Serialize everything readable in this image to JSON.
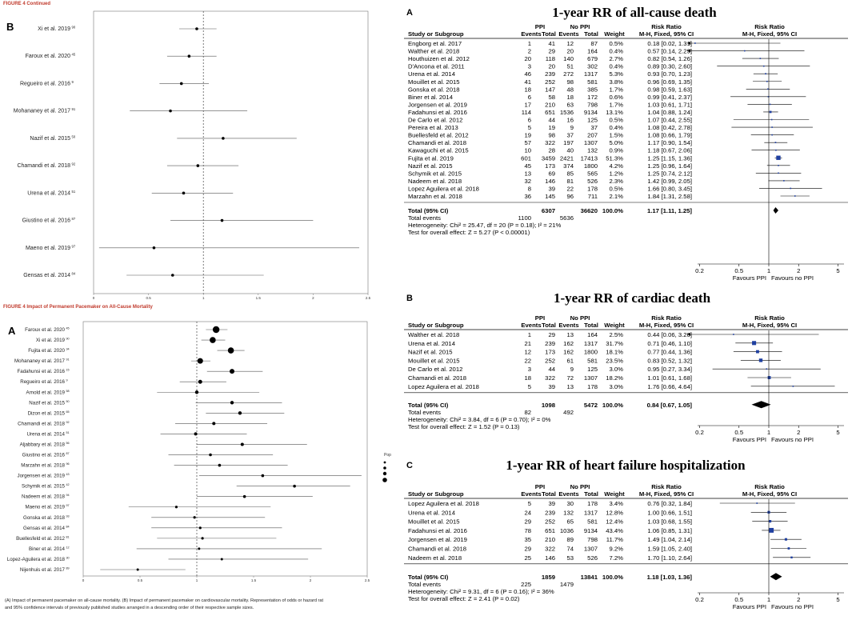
{
  "left_figure": {
    "header_continued": "FIGURE 4  Continued",
    "header_impact": "FIGURE 4  Impact of Permanent Pacemaker on All-Cause Mortality",
    "panel_b_letter": "B",
    "panel_a_letter": "A",
    "legend_label": "Pop",
    "caption_line1": "(A) Impact of permanent pacemaker on all-cause mortality. (B) Impact of permanent pacemaker on cardiovascular mortality. Representation of odds or hazard rat",
    "caption_line2": "and 95% confidence intervals of previously published studies arranged in a descending order of their respective sample sizes."
  },
  "chart_data": [
    {
      "id": "left-b",
      "type": "scatter",
      "title": "",
      "xlim": [
        0,
        2.5
      ],
      "ticks": [
        "0",
        "0.5",
        "1",
        "1.5",
        "2",
        "2.5"
      ],
      "ref_line": 1,
      "rows": [
        {
          "study": "Xi et al. 2019",
          "sup": "90",
          "est": 0.94,
          "lo": 0.78,
          "hi": 1.12
        },
        {
          "study": "Faroux et al. 2020",
          "sup": "45",
          "est": 0.87,
          "lo": 0.67,
          "hi": 1.12
        },
        {
          "study": "Regueiro et al. 2016",
          "sup": "9",
          "est": 0.8,
          "lo": 0.6,
          "hi": 1.05
        },
        {
          "study": "Mohananey et al. 2017",
          "sup": "91",
          "est": 0.7,
          "lo": 0.33,
          "hi": 1.4
        },
        {
          "study": "Nazif et al. 2015",
          "sup": "50",
          "est": 1.18,
          "lo": 0.76,
          "hi": 1.85
        },
        {
          "study": "Chamandi et al. 2018",
          "sup": "92",
          "est": 0.95,
          "lo": 0.67,
          "hi": 1.32
        },
        {
          "study": "Urena et al. 2014",
          "sup": "51",
          "est": 0.82,
          "lo": 0.53,
          "hi": 1.27
        },
        {
          "study": "Giustino et al. 2016",
          "sup": "87",
          "est": 1.17,
          "lo": 0.7,
          "hi": 2.0
        },
        {
          "study": "Maeno et al. 2019",
          "sup": "97",
          "est": 0.55,
          "lo": 0.05,
          "hi": 2.42
        },
        {
          "study": "Gensas et al. 2014",
          "sup": "84",
          "est": 0.72,
          "lo": 0.3,
          "hi": 1.55
        }
      ]
    },
    {
      "id": "left-a",
      "type": "scatter",
      "title": "",
      "xlim": [
        0,
        2.5
      ],
      "ticks": [
        "0",
        "0.5",
        "1",
        "1.5",
        "2",
        "2.5"
      ],
      "ref_line": 1,
      "rows": [
        {
          "study": "Faroux et al. 2020",
          "sup": "45",
          "est": 1.17,
          "lo": 1.08,
          "hi": 1.27,
          "size": 4.2
        },
        {
          "study": "Xi et al. 2019",
          "sup": "90",
          "est": 1.14,
          "lo": 1.04,
          "hi": 1.25,
          "size": 3.8
        },
        {
          "study": "Fujita et al. 2020",
          "sup": "34",
          "est": 1.3,
          "lo": 1.18,
          "hi": 1.42,
          "size": 3.8
        },
        {
          "study": "Mohananey et al. 2017",
          "sup": "91",
          "est": 1.03,
          "lo": 0.95,
          "hi": 1.12,
          "size": 3.5
        },
        {
          "study": "Fadahunsi et al. 2016",
          "sup": "15",
          "est": 1.31,
          "lo": 1.09,
          "hi": 1.58,
          "size": 3.0
        },
        {
          "study": "Regueiro et al. 2016",
          "sup": "9",
          "est": 1.03,
          "lo": 0.85,
          "hi": 1.26,
          "size": 2.5
        },
        {
          "study": "Arnold et al. 2019",
          "sup": "58",
          "est": 1.0,
          "lo": 0.65,
          "hi": 1.55,
          "size": 2.2
        },
        {
          "study": "Nazif et al. 2015",
          "sup": "50",
          "est": 1.31,
          "lo": 0.99,
          "hi": 1.75,
          "size": 2.2
        },
        {
          "study": "Dizon et al. 2015",
          "sup": "65",
          "est": 1.38,
          "lo": 1.08,
          "hi": 1.77,
          "size": 2.2
        },
        {
          "study": "Chamandi et al. 2018",
          "sup": "92",
          "est": 1.15,
          "lo": 0.81,
          "hi": 1.62,
          "size": 2.0
        },
        {
          "study": "Urena et al. 2014",
          "sup": "51",
          "est": 0.99,
          "lo": 0.68,
          "hi": 1.44,
          "size": 2.0
        },
        {
          "study": "Aljabbary et al. 2018",
          "sup": "56",
          "est": 1.4,
          "lo": 1.0,
          "hi": 1.97,
          "size": 2.0
        },
        {
          "study": "Giustino et al. 2016",
          "sup": "87",
          "est": 1.12,
          "lo": 0.75,
          "hi": 1.67,
          "size": 1.8
        },
        {
          "study": "Marzahn et al. 2018",
          "sup": "96",
          "est": 1.2,
          "lo": 0.8,
          "hi": 1.8,
          "size": 1.8
        },
        {
          "study": "Jorgensen et al. 2019",
          "sup": "43",
          "est": 1.58,
          "lo": 1.02,
          "hi": 2.45,
          "size": 1.8
        },
        {
          "study": "Schymik et al. 2015",
          "sup": "42",
          "est": 1.86,
          "lo": 1.35,
          "hi": 2.35,
          "size": 1.8
        },
        {
          "study": "Nadeem et al. 2018",
          "sup": "94",
          "est": 1.42,
          "lo": 1.0,
          "hi": 2.02,
          "size": 1.8
        },
        {
          "study": "Maeno et al. 2019",
          "sup": "97",
          "est": 0.82,
          "lo": 0.4,
          "hi": 1.65,
          "size": 1.6
        },
        {
          "study": "Gonska et al. 2018",
          "sup": "93",
          "est": 0.98,
          "lo": 0.6,
          "hi": 1.6,
          "size": 1.6
        },
        {
          "study": "Gensas et al. 2014",
          "sup": "84",
          "est": 1.03,
          "lo": 0.6,
          "hi": 1.75,
          "size": 1.6
        },
        {
          "study": "Buellesfeld et al. 2012",
          "sup": "81",
          "est": 1.05,
          "lo": 0.65,
          "hi": 1.7,
          "size": 1.6
        },
        {
          "study": "Biner et al. 2014",
          "sup": "12",
          "est": 1.02,
          "lo": 0.47,
          "hi": 2.1,
          "size": 1.5
        },
        {
          "study": "Lopez-Aguilera et al. 2018",
          "sup": "30",
          "est": 1.22,
          "lo": 0.75,
          "hi": 1.98,
          "size": 1.5
        },
        {
          "study": "Nijenhuis et al. 2017",
          "sup": "89",
          "est": 0.48,
          "lo": 0.15,
          "hi": 0.9,
          "size": 1.5
        }
      ]
    },
    {
      "id": "right-a",
      "type": "table",
      "panel": "A",
      "title": "1-year RR of all-cause death",
      "col_groups": [
        "PPI",
        "No PPI",
        "Risk Ratio",
        "Risk Ratio"
      ],
      "cols": [
        "Study or Subgroup",
        "Events",
        "Total",
        "Events",
        "Total",
        "Weight",
        "M-H, Fixed, 95% CI",
        "M-H, Fixed, 95% CI"
      ],
      "rows": [
        {
          "study": "Engborg et al. 2017",
          "e1": "1",
          "t1": "41",
          "e2": "12",
          "t2": "87",
          "w": "0.5%",
          "ci": "0.18 [0.02, 1.31]",
          "est": 0.18,
          "lo": 0.02,
          "hi": 1.31
        },
        {
          "study": "Walther et al. 2018",
          "e1": "2",
          "t1": "29",
          "e2": "20",
          "t2": "164",
          "w": "0.4%",
          "ci": "0.57 [0.14, 2.29]",
          "est": 0.57,
          "lo": 0.14,
          "hi": 2.29
        },
        {
          "study": "Houthuizen et al. 2012",
          "e1": "20",
          "t1": "118",
          "e2": "140",
          "t2": "679",
          "w": "2.7%",
          "ci": "0.82 [0.54, 1.26]",
          "est": 0.82,
          "lo": 0.54,
          "hi": 1.26
        },
        {
          "study": "D'Ancona et al. 2011",
          "e1": "3",
          "t1": "20",
          "e2": "51",
          "t2": "302",
          "w": "0.4%",
          "ci": "0.89 [0.30, 2.60]",
          "est": 0.89,
          "lo": 0.3,
          "hi": 2.6
        },
        {
          "study": "Urena et al. 2014",
          "e1": "46",
          "t1": "239",
          "e2": "272",
          "t2": "1317",
          "w": "5.3%",
          "ci": "0.93 [0.70, 1.23]",
          "est": 0.93,
          "lo": 0.7,
          "hi": 1.23
        },
        {
          "study": "Mouillet et al. 2015",
          "e1": "41",
          "t1": "252",
          "e2": "98",
          "t2": "581",
          "w": "3.8%",
          "ci": "0.96 [0.69, 1.35]",
          "est": 0.96,
          "lo": 0.69,
          "hi": 1.35
        },
        {
          "study": "Gonska et al. 2018",
          "e1": "18",
          "t1": "147",
          "e2": "48",
          "t2": "385",
          "w": "1.7%",
          "ci": "0.98 [0.59, 1.63]",
          "est": 0.98,
          "lo": 0.59,
          "hi": 1.63
        },
        {
          "study": "Biner et al. 2014",
          "e1": "6",
          "t1": "58",
          "e2": "18",
          "t2": "172",
          "w": "0.6%",
          "ci": "0.99 [0.41, 2.37]",
          "est": 0.99,
          "lo": 0.41,
          "hi": 2.37
        },
        {
          "study": "Jorgensen et al. 2019",
          "e1": "17",
          "t1": "210",
          "e2": "63",
          "t2": "798",
          "w": "1.7%",
          "ci": "1.03 [0.61, 1.71]",
          "est": 1.03,
          "lo": 0.61,
          "hi": 1.71
        },
        {
          "study": "Fadahunsi et al. 2016",
          "e1": "114",
          "t1": "651",
          "e2": "1536",
          "t2": "9134",
          "w": "13.1%",
          "ci": "1.04 [0.88, 1.24]",
          "est": 1.04,
          "lo": 0.88,
          "hi": 1.24
        },
        {
          "study": "De Carlo et al. 2012",
          "e1": "6",
          "t1": "44",
          "e2": "16",
          "t2": "125",
          "w": "0.5%",
          "ci": "1.07 [0.44, 2.55]",
          "est": 1.07,
          "lo": 0.44,
          "hi": 2.55
        },
        {
          "study": "Pereira et al. 2013",
          "e1": "5",
          "t1": "19",
          "e2": "9",
          "t2": "37",
          "w": "0.4%",
          "ci": "1.08 [0.42, 2.78]",
          "est": 1.08,
          "lo": 0.42,
          "hi": 2.78
        },
        {
          "study": "Buellesfeld et al. 2012",
          "e1": "19",
          "t1": "98",
          "e2": "37",
          "t2": "207",
          "w": "1.5%",
          "ci": "1.08 [0.66, 1.79]",
          "est": 1.08,
          "lo": 0.66,
          "hi": 1.79
        },
        {
          "study": "Chamandi et al. 2018",
          "e1": "57",
          "t1": "322",
          "e2": "197",
          "t2": "1307",
          "w": "5.0%",
          "ci": "1.17 [0.90, 1.54]",
          "est": 1.17,
          "lo": 0.9,
          "hi": 1.54
        },
        {
          "study": "Kawaguchi et al. 2015",
          "e1": "10",
          "t1": "28",
          "e2": "40",
          "t2": "132",
          "w": "0.9%",
          "ci": "1.18 [0.67, 2.06]",
          "est": 1.18,
          "lo": 0.67,
          "hi": 2.06
        },
        {
          "study": "Fujita et al. 2019",
          "e1": "601",
          "t1": "3459",
          "e2": "2421",
          "t2": "17413",
          "w": "51.3%",
          "ci": "1.25 [1.15, 1.36]",
          "est": 1.25,
          "lo": 1.15,
          "hi": 1.36
        },
        {
          "study": "Nazif et al. 2015",
          "e1": "45",
          "t1": "173",
          "e2": "374",
          "t2": "1800",
          "w": "4.2%",
          "ci": "1.25 [0.96, 1.64]",
          "est": 1.25,
          "lo": 0.96,
          "hi": 1.64
        },
        {
          "study": "Schymik et al. 2015",
          "e1": "13",
          "t1": "69",
          "e2": "85",
          "t2": "565",
          "w": "1.2%",
          "ci": "1.25 [0.74, 2.12]",
          "est": 1.25,
          "lo": 0.74,
          "hi": 2.12
        },
        {
          "study": "Nadeem et al. 2018",
          "e1": "32",
          "t1": "146",
          "e2": "81",
          "t2": "526",
          "w": "2.3%",
          "ci": "1.42 [0.99, 2.05]",
          "est": 1.42,
          "lo": 0.99,
          "hi": 2.05
        },
        {
          "study": "Lopez Aguilera et al. 2018",
          "e1": "8",
          "t1": "39",
          "e2": "22",
          "t2": "178",
          "w": "0.5%",
          "ci": "1.66 [0.80, 3.45]",
          "est": 1.66,
          "lo": 0.8,
          "hi": 3.45
        },
        {
          "study": "Marzahn et al. 2018",
          "e1": "36",
          "t1": "145",
          "e2": "96",
          "t2": "711",
          "w": "2.1%",
          "ci": "1.84 [1.31, 2.58]",
          "est": 1.84,
          "lo": 1.31,
          "hi": 2.58
        }
      ],
      "total": {
        "label": "Total (95% CI)",
        "t1": "6307",
        "t2": "36620",
        "w": "100.0%",
        "ci": "1.17 [1.11, 1.25]",
        "est": 1.17,
        "lo": 1.11,
        "hi": 1.25
      },
      "total_events": {
        "label": "Total events",
        "e1": "1100",
        "e2": "5636"
      },
      "heterogeneity": "Heterogeneity: Chi² = 25.47, df = 20 (P = 0.18); I² = 21%",
      "overall": "Test for overall effect: Z = 5.27 (P < 0.00001)",
      "ticks": [
        "0.2",
        "0.5",
        "1",
        "2",
        "5"
      ],
      "favours_left": "Favours PPI",
      "favours_right": "Favours no PPI"
    },
    {
      "id": "right-b",
      "type": "table",
      "panel": "B",
      "title": "1-year RR of cardiac death",
      "col_groups": [
        "PPI",
        "No PPI",
        "Risk Ratio",
        "Risk Ratio"
      ],
      "cols": [
        "Study or Subgroup",
        "Events",
        "Total",
        "Events",
        "Total",
        "Weight",
        "M-H, Fixed, 95% CI",
        "M-H, Fixed, 95% CI"
      ],
      "rows": [
        {
          "study": "Walther et al. 2018",
          "e1": "1",
          "t1": "29",
          "e2": "13",
          "t2": "164",
          "w": "2.5%",
          "ci": "0.44 [0.06, 3.20]",
          "est": 0.44,
          "lo": 0.06,
          "hi": 3.2
        },
        {
          "study": "Urena et al. 2014",
          "e1": "21",
          "t1": "239",
          "e2": "162",
          "t2": "1317",
          "w": "31.7%",
          "ci": "0.71 [0.46, 1.10]",
          "est": 0.71,
          "lo": 0.46,
          "hi": 1.1
        },
        {
          "study": "Nazif et al. 2015",
          "e1": "12",
          "t1": "173",
          "e2": "162",
          "t2": "1800",
          "w": "18.1%",
          "ci": "0.77 [0.44, 1.36]",
          "est": 0.77,
          "lo": 0.44,
          "hi": 1.36
        },
        {
          "study": "Mouillet et al. 2015",
          "e1": "22",
          "t1": "252",
          "e2": "61",
          "t2": "581",
          "w": "23.5%",
          "ci": "0.83 [0.52, 1.32]",
          "est": 0.83,
          "lo": 0.52,
          "hi": 1.32
        },
        {
          "study": "De Carlo et al. 2012",
          "e1": "3",
          "t1": "44",
          "e2": "9",
          "t2": "125",
          "w": "3.0%",
          "ci": "0.95 [0.27, 3.34]",
          "est": 0.95,
          "lo": 0.27,
          "hi": 3.34
        },
        {
          "study": "Chamandi et al. 2018",
          "e1": "18",
          "t1": "322",
          "e2": "72",
          "t2": "1307",
          "w": "18.2%",
          "ci": "1.01 [0.61, 1.68]",
          "est": 1.01,
          "lo": 0.61,
          "hi": 1.68
        },
        {
          "study": "Lopez Aguilera et al. 2018",
          "e1": "5",
          "t1": "39",
          "e2": "13",
          "t2": "178",
          "w": "3.0%",
          "ci": "1.76 [0.66, 4.64]",
          "est": 1.76,
          "lo": 0.66,
          "hi": 4.64
        }
      ],
      "total": {
        "label": "Total (95% CI)",
        "t1": "1098",
        "t2": "5472",
        "w": "100.0%",
        "ci": "0.84 [0.67, 1.05]",
        "est": 0.84,
        "lo": 0.67,
        "hi": 1.05
      },
      "total_events": {
        "label": "Total events",
        "e1": "82",
        "e2": "492"
      },
      "heterogeneity": "Heterogeneity: Chi² = 3.84, df = 6 (P = 0.70); I² = 0%",
      "overall": "Test for overall effect: Z = 1.52 (P = 0.13)",
      "ticks": [
        "0.2",
        "0.5",
        "1",
        "2",
        "5"
      ],
      "favours_left": "Favours PPI",
      "favours_right": "Favours no PPI"
    },
    {
      "id": "right-c",
      "type": "table",
      "panel": "C",
      "title": "1-year RR of heart failure hospitalization",
      "col_groups": [
        "PPI",
        "No PPI",
        "Risk Ratio",
        "Risk Ratio"
      ],
      "cols": [
        "Study or Subgroup",
        "Events",
        "Total",
        "Events",
        "Total",
        "Weight",
        "M-H, Fixed, 95% CI",
        "M-H, Fixed, 95% CI"
      ],
      "rows": [
        {
          "study": "Lopez Aguilera et al. 2018",
          "e1": "5",
          "t1": "39",
          "e2": "30",
          "t2": "178",
          "w": "3.4%",
          "ci": "0.76 [0.32, 1.84]",
          "est": 0.76,
          "lo": 0.32,
          "hi": 1.84
        },
        {
          "study": "Urena et al. 2014",
          "e1": "24",
          "t1": "239",
          "e2": "132",
          "t2": "1317",
          "w": "12.8%",
          "ci": "1.00 [0.66, 1.51]",
          "est": 1.0,
          "lo": 0.66,
          "hi": 1.51
        },
        {
          "study": "Mouillet et al. 2015",
          "e1": "29",
          "t1": "252",
          "e2": "65",
          "t2": "581",
          "w": "12.4%",
          "ci": "1.03 [0.68, 1.55]",
          "est": 1.03,
          "lo": 0.68,
          "hi": 1.55
        },
        {
          "study": "Fadahunsi et al. 2016",
          "e1": "78",
          "t1": "651",
          "e2": "1036",
          "t2": "9134",
          "w": "43.4%",
          "ci": "1.06 [0.85, 1.31]",
          "est": 1.06,
          "lo": 0.85,
          "hi": 1.31
        },
        {
          "study": "Jorgensen et al. 2019",
          "e1": "35",
          "t1": "210",
          "e2": "89",
          "t2": "798",
          "w": "11.7%",
          "ci": "1.49 [1.04, 2.14]",
          "est": 1.49,
          "lo": 1.04,
          "hi": 2.14
        },
        {
          "study": "Chamandi et al. 2018",
          "e1": "29",
          "t1": "322",
          "e2": "74",
          "t2": "1307",
          "w": "9.2%",
          "ci": "1.59 [1.05, 2.40]",
          "est": 1.59,
          "lo": 1.05,
          "hi": 2.4
        },
        {
          "study": "Nadeem et al. 2018",
          "e1": "25",
          "t1": "146",
          "e2": "53",
          "t2": "526",
          "w": "7.2%",
          "ci": "1.70 [1.10, 2.64]",
          "est": 1.7,
          "lo": 1.1,
          "hi": 2.64
        }
      ],
      "total": {
        "label": "Total (95% CI)",
        "t1": "1859",
        "t2": "13841",
        "w": "100.0%",
        "ci": "1.18 [1.03, 1.36]",
        "est": 1.18,
        "lo": 1.03,
        "hi": 1.36
      },
      "total_events": {
        "label": "Total events",
        "e1": "225",
        "e2": "1479"
      },
      "heterogeneity": "Heterogeneity: Chi² = 9.31, df = 6 (P = 0.16); I² = 36%",
      "overall": "Test for overall effect: Z = 2.41 (P = 0.02)",
      "ticks": [
        "0.2",
        "0.5",
        "1",
        "2",
        "5"
      ],
      "favours_left": "Favours PPI",
      "favours_right": "Favours no PPI"
    }
  ]
}
